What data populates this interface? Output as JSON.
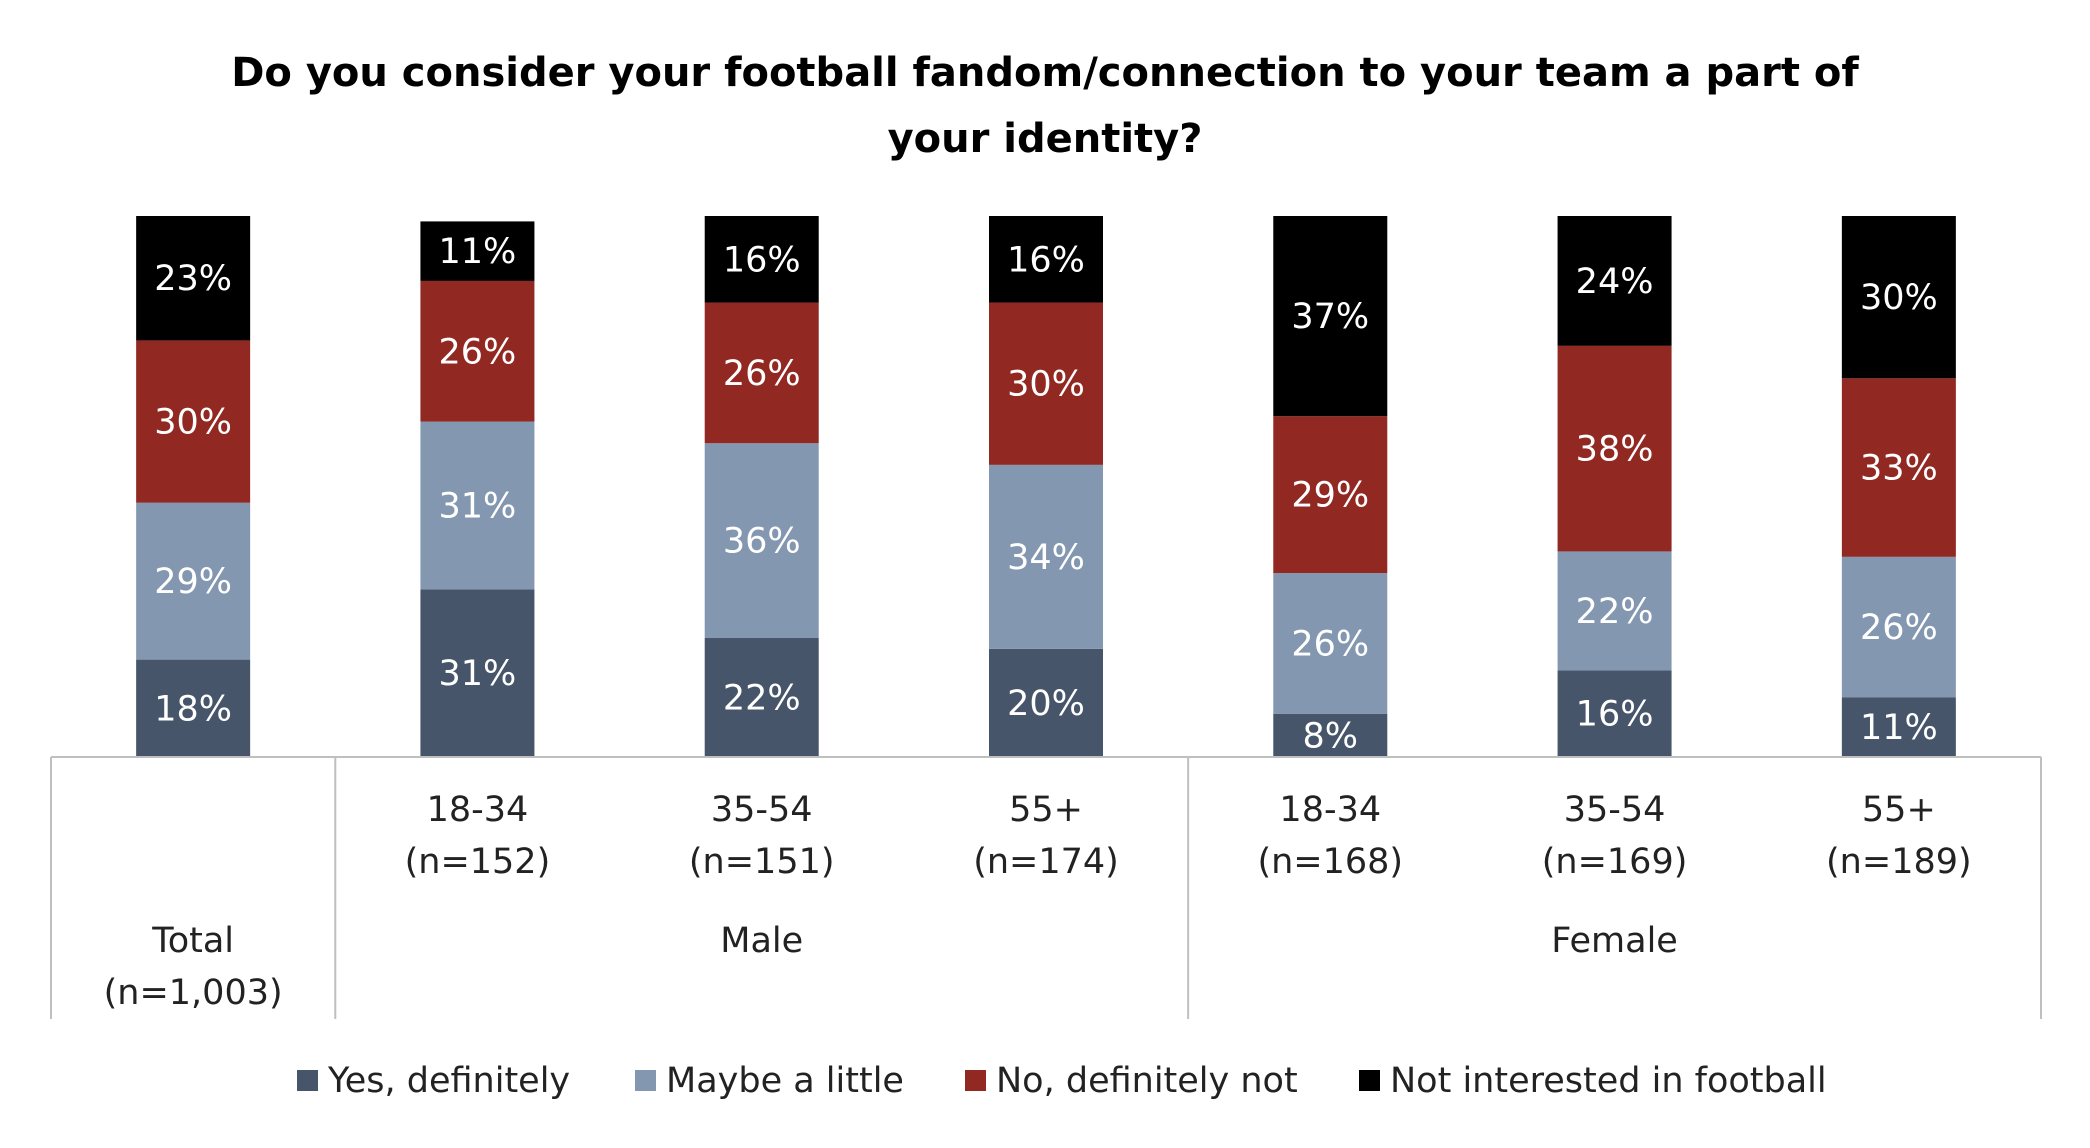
{
  "chart_data": {
    "type": "stacked_bar",
    "title": "Do you consider your football fandom/connection to your team a part of your identity?",
    "categories": [
      [
        "Total",
        "(n=1,003)"
      ],
      [
        "18-34",
        "(n=152)"
      ],
      [
        "35-54",
        "(n=151)"
      ],
      [
        "55+",
        "(n=174)"
      ],
      [
        "18-34",
        "(n=168)"
      ],
      [
        "35-54",
        "(n=169)"
      ],
      [
        "55+",
        "(n=189)"
      ]
    ],
    "groups": [
      null,
      "Male",
      "Male",
      "Male",
      "Female",
      "Female",
      "Female"
    ],
    "ylim": [
      0,
      100
    ],
    "series": [
      {
        "name": "Yes, definitely",
        "color": "#465569",
        "values": [
          18,
          31,
          22,
          20,
          8,
          16,
          11
        ],
        "value_labels": [
          "18%",
          "31%",
          "22%",
          "20%",
          "8%",
          "16%",
          "11%"
        ]
      },
      {
        "name": "Maybe a little",
        "color": "#8497b0",
        "values": [
          29,
          31,
          36,
          34,
          26,
          22,
          26
        ],
        "value_labels": [
          "29%",
          "31%",
          "36%",
          "34%",
          "26%",
          "22%",
          "26%"
        ]
      },
      {
        "name": "No, definitely not",
        "color": "#922822",
        "values": [
          30,
          26,
          26,
          30,
          29,
          38,
          33
        ],
        "value_labels": [
          "30%",
          "26%",
          "26%",
          "30%",
          "29%",
          "38%",
          "33%"
        ]
      },
      {
        "name": "Not interested in football",
        "color": "#000000",
        "values": [
          23,
          11,
          16,
          16,
          37,
          24,
          30
        ],
        "value_labels": [
          "23%",
          "11%",
          "16%",
          "16%",
          "37%",
          "24%",
          "30%"
        ]
      }
    ],
    "legend": "bottom"
  }
}
